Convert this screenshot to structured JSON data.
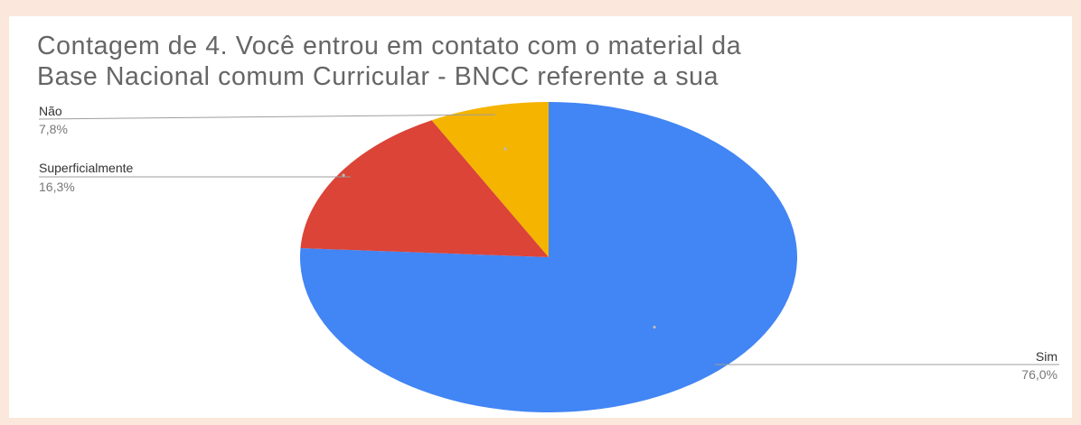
{
  "chart_data": {
    "type": "pie",
    "title_lines": [
      "Contagem de 4. Você entrou em contato com o material da",
      "Base Nacional comum Curricular - BNCC referente a sua"
    ],
    "slices": [
      {
        "label": "Sim",
        "value": 76.0,
        "display": "76,0%",
        "color": "#4285f4"
      },
      {
        "label": "Superficialmente",
        "value": 16.3,
        "display": "16,3%",
        "color": "#db4437"
      },
      {
        "label": "Não",
        "value": 7.8,
        "display": "7,8%",
        "color": "#f4b400"
      }
    ],
    "start": "12 o'clock",
    "direction": "clockwise",
    "legend": "callout labels"
  }
}
